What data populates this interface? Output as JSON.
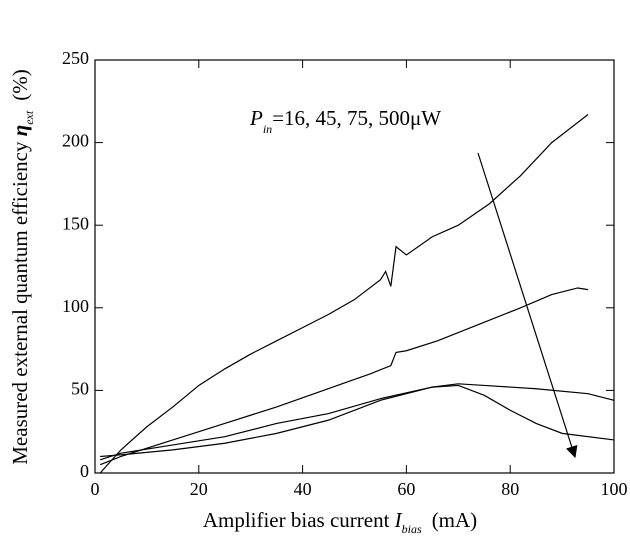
{
  "chart_data": {
    "type": "line",
    "xlabel": {
      "text": "Amplifier bias current",
      "symbol": "I",
      "subscript": "bias",
      "unit": "(mA)"
    },
    "ylabel": {
      "text": "Measured external quantum efficiency",
      "symbol": "η",
      "subscript": "ext",
      "unit": "(%)"
    },
    "annotation": {
      "symbol": "P",
      "subscript": "in",
      "text": "=16, 45, 75, 500μW"
    },
    "xlim": [
      0,
      100
    ],
    "xticks": [
      0,
      20,
      40,
      60,
      80,
      100
    ],
    "ylim": [
      0,
      250
    ],
    "yticks": [
      0,
      50,
      100,
      150,
      200,
      250
    ],
    "series": [
      {
        "color": "#000000",
        "x": [
          1,
          5,
          10,
          15,
          20,
          25,
          30,
          35,
          40,
          45,
          50,
          55,
          56,
          57,
          58,
          60,
          65,
          70,
          76,
          82,
          88,
          95
        ],
        "values": [
          0,
          14,
          28,
          40,
          53,
          63,
          72,
          80,
          88,
          96,
          105,
          117,
          122,
          113,
          137,
          132,
          143,
          150,
          163,
          180,
          200,
          217
        ]
      },
      {
        "color": "#000000",
        "x": [
          1,
          5,
          15,
          25,
          35,
          44,
          53,
          57,
          58,
          60,
          66,
          74,
          82,
          88,
          93,
          95
        ],
        "values": [
          5,
          10,
          20,
          30,
          40,
          50,
          60,
          65,
          73,
          74,
          80,
          90,
          100,
          108,
          112,
          111
        ]
      },
      {
        "color": "#000000",
        "x": [
          1,
          5,
          15,
          25,
          35,
          45,
          55,
          65,
          70,
          75,
          85,
          95,
          100
        ],
        "values": [
          8,
          12,
          17,
          22,
          30,
          36,
          45,
          52,
          54,
          53,
          51,
          48,
          44
        ]
      },
      {
        "color": "#000000",
        "x": [
          1,
          5,
          15,
          25,
          35,
          45,
          55,
          65,
          70,
          75,
          80,
          85,
          90,
          100
        ],
        "values": [
          10,
          11,
          14,
          18,
          24,
          32,
          44,
          52,
          53,
          47,
          38,
          30,
          24,
          20
        ]
      }
    ]
  }
}
